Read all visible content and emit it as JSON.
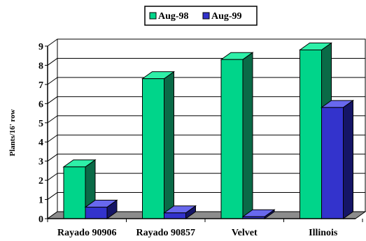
{
  "chart_data": {
    "type": "bar",
    "categories": [
      "Rayado 90906",
      "Rayado 90857",
      "Velvet",
      "Illinois"
    ],
    "series": [
      {
        "name": "Aug-98",
        "values": [
          2.7,
          7.3,
          8.3,
          8.8
        ]
      },
      {
        "name": "Aug-99",
        "values": [
          0.6,
          0.3,
          0.1,
          5.8
        ]
      }
    ],
    "title": "",
    "xlabel": "",
    "ylabel": "Plants/16' row",
    "ylim": [
      0,
      9
    ],
    "yticks": [
      0,
      1,
      2,
      3,
      4,
      5,
      6,
      7,
      8,
      9
    ],
    "grid": true,
    "legend_position": "top-center",
    "style": "3d",
    "colors": {
      "series_fronts": [
        "#00d58a",
        "#3333cc"
      ],
      "series_tops": [
        "#2ef0a8",
        "#6868ee"
      ],
      "series_sides": [
        "#0a6a47",
        "#151566"
      ],
      "floor": "#8c8c8c",
      "grid": "#000000"
    }
  }
}
